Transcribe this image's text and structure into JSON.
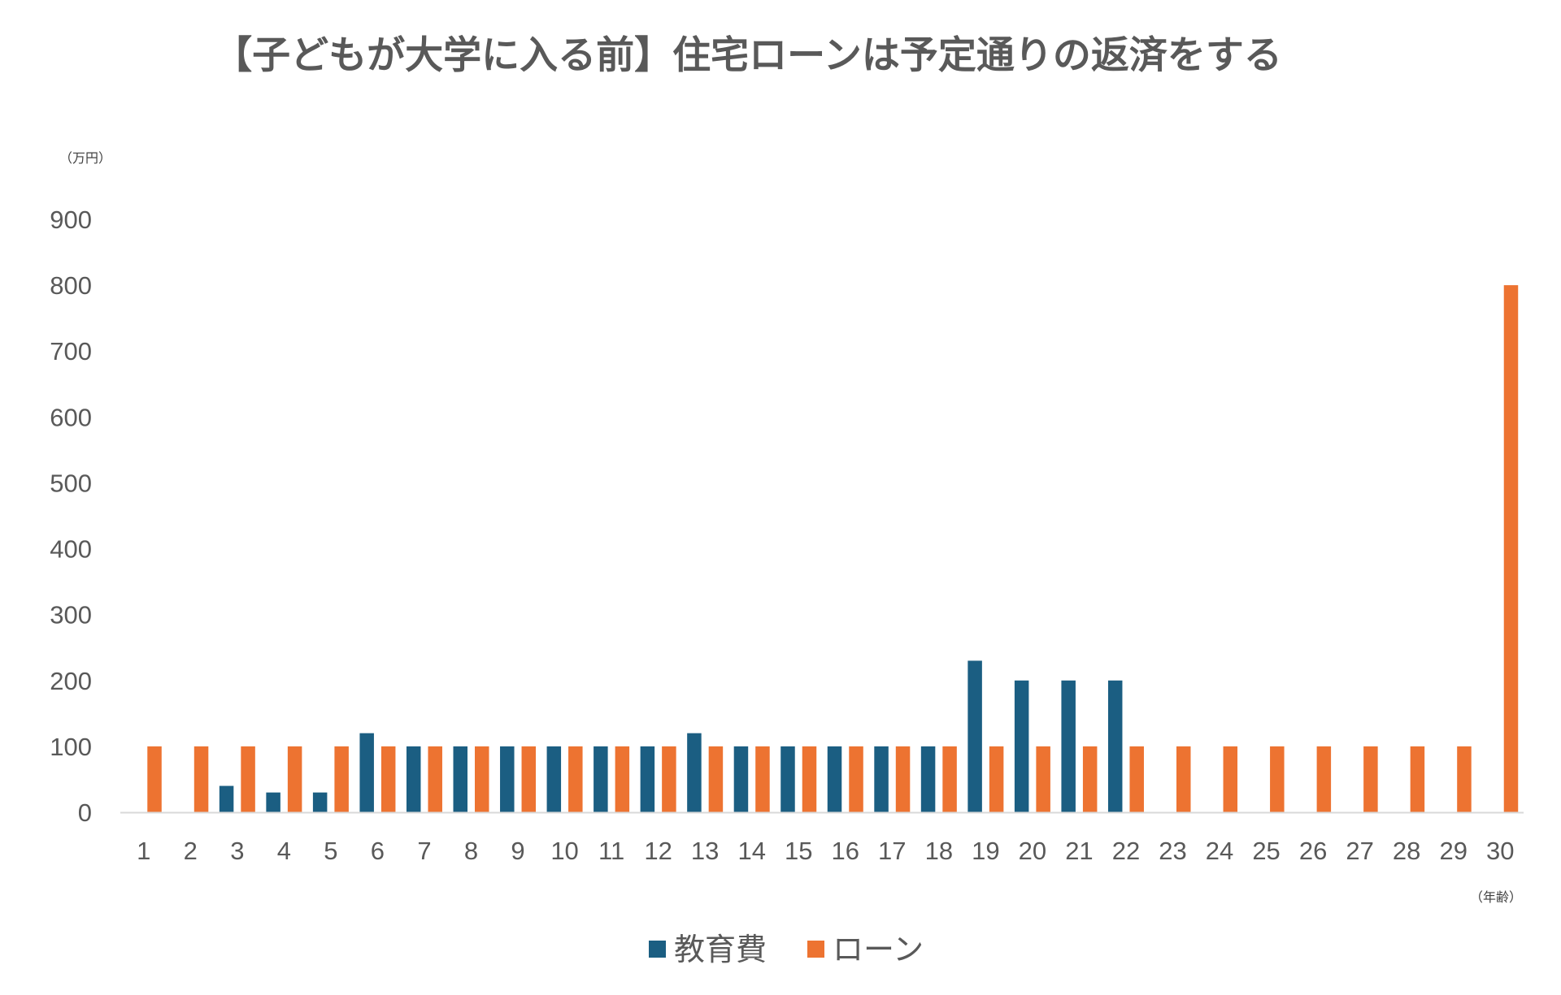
{
  "chart_data": {
    "type": "bar",
    "title": "【子どもが大学に入る前】住宅ローンは予定通りの返済をする",
    "ylabel": "（万円）",
    "xlabel": "（年齢）",
    "ylim": [
      0,
      900
    ],
    "yticks": [
      0,
      100,
      200,
      300,
      400,
      500,
      600,
      700,
      800,
      900
    ],
    "grid": false,
    "legend_position": "bottom",
    "categories": [
      "1",
      "2",
      "3",
      "4",
      "5",
      "6",
      "7",
      "8",
      "9",
      "10",
      "11",
      "12",
      "13",
      "14",
      "15",
      "16",
      "17",
      "18",
      "19",
      "20",
      "21",
      "22",
      "23",
      "24",
      "25",
      "26",
      "27",
      "28",
      "29",
      "30"
    ],
    "series": [
      {
        "name": "教育費",
        "color": "#1b5e82",
        "values": [
          0,
          0,
          40,
          30,
          30,
          120,
          100,
          100,
          100,
          100,
          100,
          100,
          120,
          100,
          100,
          100,
          100,
          100,
          230,
          200,
          200,
          200,
          0,
          0,
          0,
          0,
          0,
          0,
          0,
          0
        ]
      },
      {
        "name": "ローン",
        "color": "#ed7331",
        "values": [
          100,
          100,
          100,
          100,
          100,
          100,
          100,
          100,
          100,
          100,
          100,
          100,
          100,
          100,
          100,
          100,
          100,
          100,
          100,
          100,
          100,
          100,
          100,
          100,
          100,
          100,
          100,
          100,
          100,
          800
        ]
      }
    ]
  }
}
